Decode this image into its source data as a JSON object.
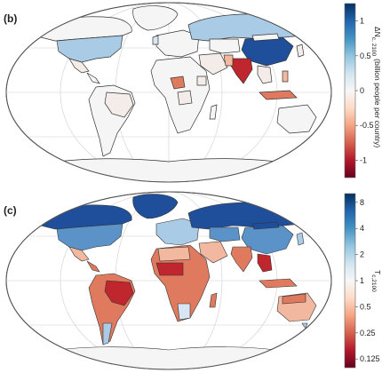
{
  "panel_b": {
    "label": "(b)",
    "colorbar": {
      "title_main": "ΔN",
      "title_sub": "c, 2100",
      "title_rest": "(billion people per country)",
      "ticks": [
        {
          "value": 1,
          "label": "1"
        },
        {
          "value": 0.5,
          "label": "0.5"
        },
        {
          "value": 0,
          "label": "0"
        },
        {
          "value": -0.5,
          "label": "-0.5"
        },
        {
          "value": -1,
          "label": "-1"
        }
      ],
      "range": [
        -1.25,
        1.25
      ],
      "colors": [
        "#67001f",
        "#b2182b",
        "#d6604d",
        "#f4a582",
        "#fddbc7",
        "#f7f7f7",
        "#d1e5f0",
        "#92c5de",
        "#4393c3",
        "#2166ac",
        "#053061"
      ]
    }
  },
  "panel_c": {
    "label": "(c)",
    "colorbar": {
      "title_main": "T",
      "title_sub": "c,2100",
      "ticks": [
        {
          "value": 8,
          "label": "8"
        },
        {
          "value": 4,
          "label": "4"
        },
        {
          "value": 2,
          "label": "2"
        },
        {
          "value": 1,
          "label": "1"
        },
        {
          "value": 0.5,
          "label": "0.5"
        },
        {
          "value": 0.25,
          "label": "0.25"
        },
        {
          "value": 0.125,
          "label": "0.125"
        }
      ],
      "scale": "log2",
      "colors": [
        "#67001f",
        "#b2182b",
        "#d6604d",
        "#f4a582",
        "#fddbc7",
        "#f7f7f7",
        "#d1e5f0",
        "#92c5de",
        "#4393c3",
        "#2166ac",
        "#053061"
      ]
    }
  },
  "colors": {
    "strong_blue": "#1f4e9a",
    "mid_blue": "#5b93c8",
    "light_blue": "#a9cbe6",
    "pale_blue": "#d7e6f2",
    "strong_red": "#c0262d",
    "mid_red": "#e07a5f",
    "light_red": "#f2b8a0",
    "pale": "#f3ece8",
    "land_neutral": "#f5f5f5",
    "outline": "#333333",
    "grid": "#cfcfcf"
  }
}
